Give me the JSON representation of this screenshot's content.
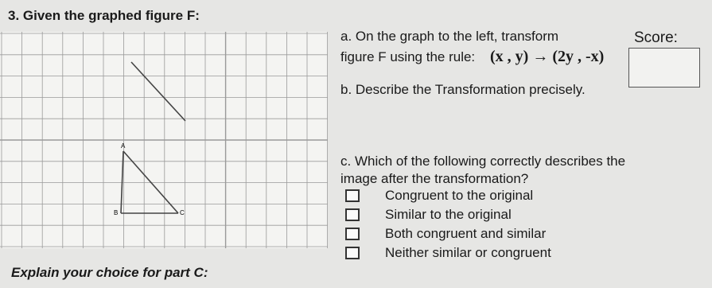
{
  "question": {
    "title": "3. Given the graphed figure F:",
    "part_a_line1": "a. On the graph to the left, transform",
    "part_a_line2": "figure F using the rule:",
    "rule": "(x , y) → (2y , -x)",
    "part_b": "b. Describe the Transformation precisely.",
    "part_c_line1": "c. Which of the following correctly describes the",
    "part_c_line2": "image after the transformation?",
    "options": [
      "Congruent to the original",
      "Similar to the original",
      "Both  congruent and similar",
      "Neither similar or congruent"
    ],
    "explain": "Explain your choice for part C:"
  },
  "score": {
    "label": "Score:"
  },
  "graph": {
    "labels": [
      "A",
      "B",
      "C"
    ]
  }
}
